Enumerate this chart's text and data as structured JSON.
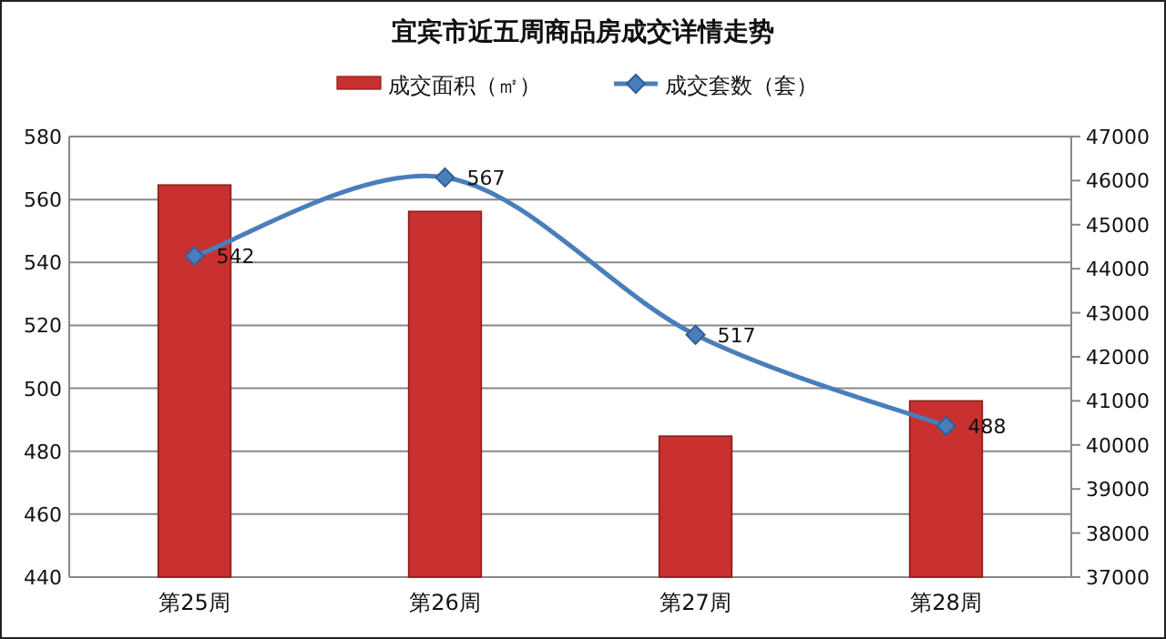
{
  "chart_data": {
    "type": "bar",
    "title": "宜宾市近五周商品房成交详情走势",
    "categories": [
      "第25周",
      "第26周",
      "第27周",
      "第28周"
    ],
    "series": [
      {
        "name": "成交面积（㎡）",
        "color": "#c8312f",
        "axis": "y2",
        "values": [
          45900,
          45300,
          40200,
          41000
        ]
      },
      {
        "name": "成交套数（套）",
        "type": "line",
        "color": "#4a7ebb",
        "values": [
          542,
          567,
          517,
          488
        ],
        "value_labels": [
          "542",
          "567",
          "517",
          "488"
        ]
      }
    ],
    "ylim": [
      440,
      580
    ],
    "yticks": [
      440,
      460,
      480,
      500,
      520,
      540,
      560,
      580
    ],
    "y2lim": [
      37000,
      47000
    ],
    "y2ticks": [
      37000,
      38000,
      39000,
      40000,
      41000,
      42000,
      43000,
      44000,
      45000,
      46000,
      47000
    ],
    "grid": "y",
    "legend": "top",
    "marker": "diamond",
    "line_style": "solid"
  }
}
